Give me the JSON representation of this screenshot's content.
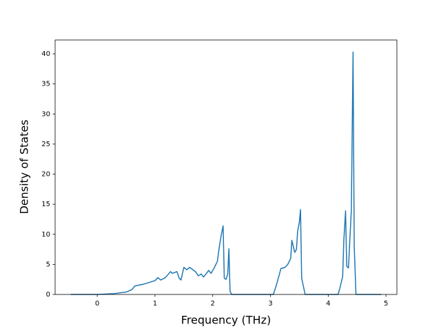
{
  "chart_data": {
    "type": "line",
    "x_label": "Frequency (THz)",
    "y_label": "Density of States",
    "color": "#1f77b4",
    "x": [
      -0.46,
      0,
      0.3,
      0.5,
      0.6,
      0.65,
      0.8,
      1.0,
      1.05,
      1.1,
      1.18,
      1.27,
      1.3,
      1.38,
      1.42,
      1.45,
      1.5,
      1.55,
      1.6,
      1.7,
      1.75,
      1.8,
      1.84,
      1.9,
      1.93,
      1.97,
      2.03,
      2.08,
      2.12,
      2.15,
      2.18,
      2.2,
      2.23,
      2.26,
      2.28,
      2.3,
      2.33,
      3.05,
      3.1,
      3.15,
      3.18,
      3.25,
      3.3,
      3.35,
      3.37,
      3.42,
      3.45,
      3.47,
      3.5,
      3.52,
      3.54,
      3.6,
      4.17,
      4.2,
      4.25,
      4.27,
      4.3,
      4.32,
      4.35,
      4.4,
      4.43,
      4.45,
      4.48,
      4.92
    ],
    "values": [
      0,
      0,
      0.15,
      0.4,
      0.8,
      1.4,
      1.7,
      2.3,
      2.8,
      2.4,
      2.8,
      3.8,
      3.5,
      3.8,
      2.7,
      2.4,
      4.5,
      4.1,
      4.5,
      3.8,
      3.1,
      3.4,
      2.9,
      3.6,
      4.0,
      3.5,
      4.5,
      5.5,
      8.3,
      10,
      11.4,
      2.7,
      2.5,
      3.4,
      7.6,
      0.5,
      0,
      0,
      1.5,
      3.2,
      4.3,
      4.5,
      5,
      6,
      9,
      7,
      7.5,
      10.5,
      12,
      14.1,
      2.7,
      0,
      0,
      1,
      3,
      9,
      13.9,
      4.7,
      4.4,
      14,
      40.3,
      8,
      0,
      0
    ],
    "xlim": [
      -0.729,
      5.189
    ],
    "xticks": [
      0,
      1,
      2,
      3,
      4,
      5
    ],
    "ylim": [
      0,
      42.3
    ],
    "yticks": [
      0,
      5,
      10,
      15,
      20,
      25,
      30,
      35,
      40
    ]
  }
}
